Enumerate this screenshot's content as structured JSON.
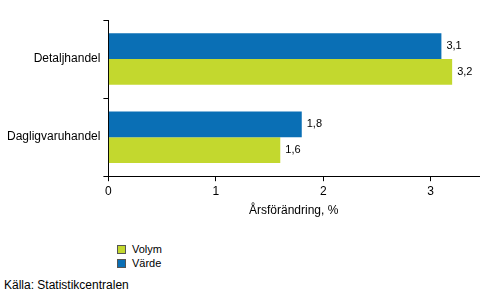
{
  "chart_data": {
    "type": "bar",
    "orientation": "horizontal",
    "categories": [
      "Detaljhandel",
      "Dagligvaruhandel"
    ],
    "series": [
      {
        "name": "Värde",
        "color": "#0a6fb5",
        "values": [
          3.1,
          1.8
        ],
        "value_labels": [
          "3,1",
          "1,8"
        ]
      },
      {
        "name": "Volym",
        "color": "#c3d82e",
        "values": [
          3.2,
          1.6
        ],
        "value_labels": [
          "3,2",
          "1,6"
        ]
      }
    ],
    "x_label": "Årsförändring, %",
    "xlim": [
      0,
      3.45
    ],
    "xticks": [
      0,
      1,
      2,
      3
    ],
    "grid": false,
    "data_labels": true,
    "legend": "bottom-left",
    "source": "Källa: Statistikcentralen"
  }
}
